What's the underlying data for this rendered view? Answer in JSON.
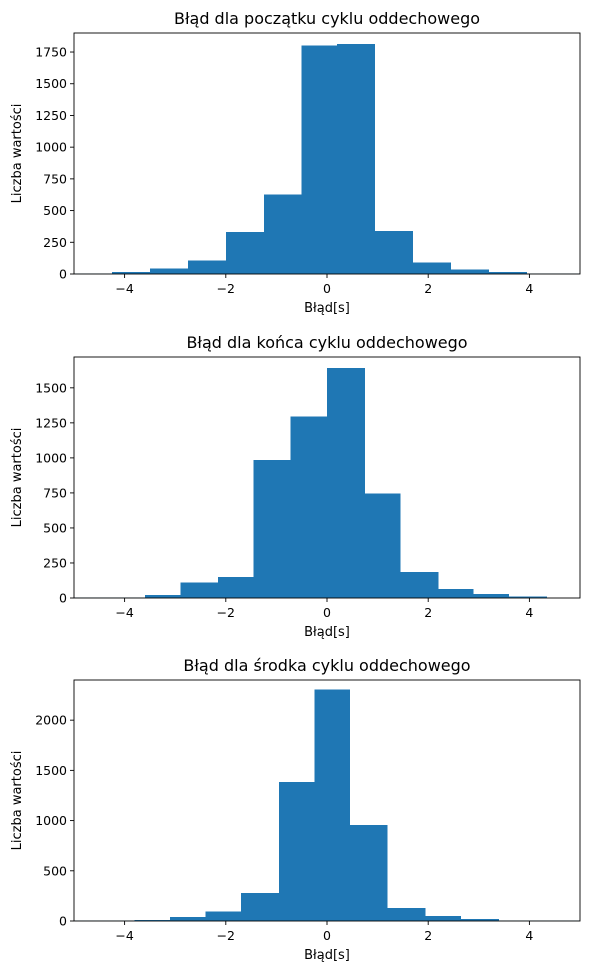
{
  "chart_data": [
    {
      "type": "bar",
      "title": "Błąd dla początku cyklu oddechowego",
      "xlabel": "Błąd[s]",
      "ylabel": "Liczba wartości",
      "xlim": [
        -5,
        5
      ],
      "ylim": [
        0,
        1900
      ],
      "xticks": [
        -4,
        -2,
        0,
        2,
        4
      ],
      "xtick_labels": [
        "−4",
        "−2",
        "0",
        "2",
        "4"
      ],
      "yticks": [
        0,
        250,
        500,
        750,
        1000,
        1250,
        1500,
        1750
      ],
      "bins": [
        {
          "x0": -5.0,
          "x1": -4.25,
          "value": 3
        },
        {
          "x0": -4.25,
          "x1": -3.5,
          "value": 15
        },
        {
          "x0": -3.5,
          "x1": -2.75,
          "value": 45
        },
        {
          "x0": -2.75,
          "x1": -2.0,
          "value": 105
        },
        {
          "x0": -2.0,
          "x1": -1.25,
          "value": 330
        },
        {
          "x0": -1.25,
          "x1": -0.5,
          "value": 625
        },
        {
          "x0": -0.5,
          "x1": 0.2,
          "value": 1800
        },
        {
          "x0": 0.2,
          "x1": 0.95,
          "value": 1815
        },
        {
          "x0": 0.95,
          "x1": 1.7,
          "value": 340
        },
        {
          "x0": 1.7,
          "x1": 2.45,
          "value": 90
        },
        {
          "x0": 2.45,
          "x1": 3.2,
          "value": 35
        },
        {
          "x0": 3.2,
          "x1": 3.95,
          "value": 15
        },
        {
          "x0": 3.95,
          "x1": 5.0,
          "value": 3
        }
      ],
      "color": "#1f77b4"
    },
    {
      "type": "bar",
      "title": "Błąd dla końca cyklu oddechowego",
      "xlabel": "Błąd[s]",
      "ylabel": "Liczba wartości",
      "xlim": [
        -5,
        5
      ],
      "ylim": [
        0,
        1720
      ],
      "xticks": [
        -4,
        -2,
        0,
        2,
        4
      ],
      "xtick_labels": [
        "−4",
        "−2",
        "0",
        "2",
        "4"
      ],
      "yticks": [
        0,
        250,
        500,
        750,
        1000,
        1250,
        1500
      ],
      "bins": [
        {
          "x0": -5.0,
          "x1": -4.3,
          "value": 3
        },
        {
          "x0": -4.3,
          "x1": -3.6,
          "value": 5
        },
        {
          "x0": -3.6,
          "x1": -2.9,
          "value": 20
        },
        {
          "x0": -2.9,
          "x1": -2.15,
          "value": 110
        },
        {
          "x0": -2.15,
          "x1": -1.45,
          "value": 150
        },
        {
          "x0": -1.45,
          "x1": -0.72,
          "value": 985
        },
        {
          "x0": -0.72,
          "x1": 0.0,
          "value": 1295
        },
        {
          "x0": 0.0,
          "x1": 0.75,
          "value": 1640
        },
        {
          "x0": 0.75,
          "x1": 1.45,
          "value": 745
        },
        {
          "x0": 1.45,
          "x1": 2.2,
          "value": 185
        },
        {
          "x0": 2.2,
          "x1": 2.9,
          "value": 65
        },
        {
          "x0": 2.9,
          "x1": 3.6,
          "value": 30
        },
        {
          "x0": 3.6,
          "x1": 4.35,
          "value": 10
        }
      ],
      "color": "#1f77b4"
    },
    {
      "type": "bar",
      "title": "Błąd dla środka cyklu oddechowego",
      "xlabel": "Błąd[s]",
      "ylabel": "Liczba wartości",
      "xlim": [
        -5,
        5
      ],
      "ylim": [
        0,
        2400
      ],
      "xticks": [
        -4,
        -2,
        0,
        2,
        4
      ],
      "xtick_labels": [
        "−4",
        "−2",
        "0",
        "2",
        "4"
      ],
      "yticks": [
        0,
        500,
        1000,
        1500,
        2000
      ],
      "bins": [
        {
          "x0": -5.0,
          "x1": -3.8,
          "value": 3
        },
        {
          "x0": -3.8,
          "x1": -3.1,
          "value": 10
        },
        {
          "x0": -3.1,
          "x1": -2.4,
          "value": 40
        },
        {
          "x0": -2.4,
          "x1": -1.7,
          "value": 95
        },
        {
          "x0": -1.7,
          "x1": -0.95,
          "value": 280
        },
        {
          "x0": -0.95,
          "x1": -0.25,
          "value": 1385
        },
        {
          "x0": -0.25,
          "x1": 0.45,
          "value": 2305
        },
        {
          "x0": 0.45,
          "x1": 1.2,
          "value": 955
        },
        {
          "x0": 1.2,
          "x1": 1.95,
          "value": 130
        },
        {
          "x0": 1.95,
          "x1": 2.65,
          "value": 50
        },
        {
          "x0": 2.65,
          "x1": 3.4,
          "value": 20
        },
        {
          "x0": 3.4,
          "x1": 5.0,
          "value": 3
        }
      ],
      "color": "#1f77b4"
    }
  ]
}
